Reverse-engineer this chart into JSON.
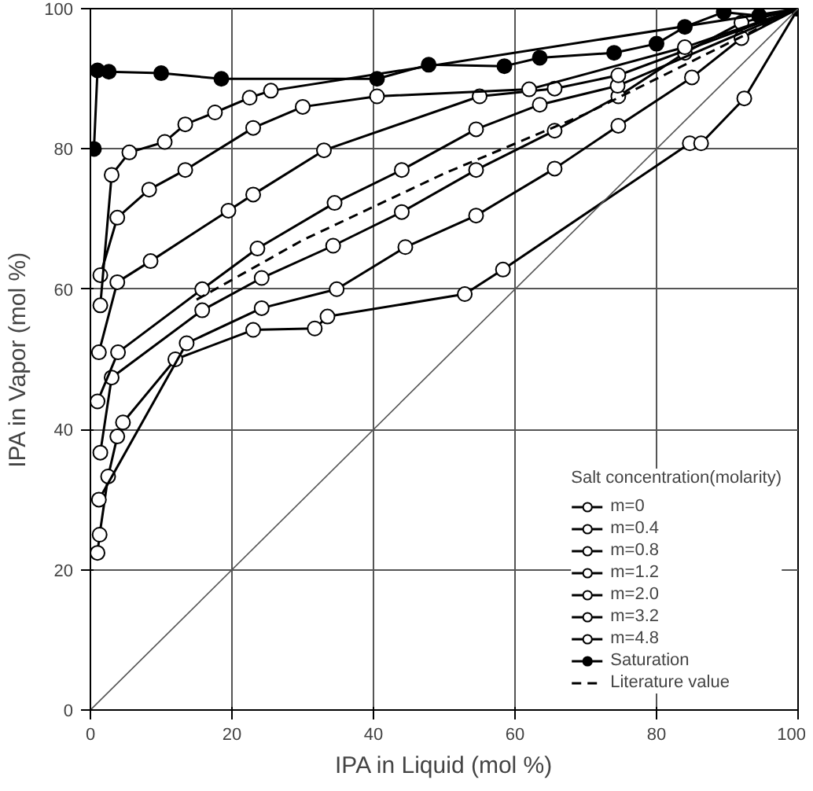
{
  "chart_data": {
    "type": "line",
    "xlabel": "IPA in Liquid (mol %)",
    "ylabel": "IPA in Vapor (mol %)",
    "legend_title": "Salt concentration(molarity)",
    "xlim": [
      0,
      100
    ],
    "ylim": [
      0,
      100
    ],
    "xticks": [
      0,
      20,
      40,
      60,
      80,
      100
    ],
    "yticks": [
      0,
      20,
      40,
      60,
      80,
      100
    ],
    "grid": true,
    "legend": "bottom right",
    "line_style": "solid",
    "series": [
      {
        "name": "m=0",
        "color": "#000000",
        "marker": "circle",
        "x": [
          1,
          1.3,
          2.5,
          3.8,
          4.6,
          12,
          23,
          31.7,
          33.5,
          52.9,
          58.3,
          84.7,
          86.3,
          92.4,
          100
        ],
        "values": [
          22.4,
          25,
          33.3,
          39,
          41,
          50,
          54.2,
          54.4,
          56.1,
          59.3,
          62.8,
          80.8,
          80.8,
          87.2,
          100
        ]
      },
      {
        "name": "m=0.4",
        "color": "#000000",
        "marker": "circle",
        "x": [
          1.2,
          13.6,
          24.2,
          34.8,
          44.5,
          54.5,
          65.6,
          74.6,
          85,
          92,
          100
        ],
        "values": [
          30,
          52.3,
          57.3,
          60,
          66,
          70.5,
          77.2,
          83.3,
          90.2,
          95.8,
          100
        ]
      },
      {
        "name": "m=0.8",
        "color": "#000000",
        "marker": "circle",
        "x": [
          1.4,
          3,
          15.8,
          24.2,
          34.3,
          44,
          54.5,
          65.6,
          74.6,
          84,
          92,
          100
        ],
        "values": [
          36.7,
          47.4,
          57,
          61.6,
          66.2,
          71,
          77,
          82.6,
          87.5,
          93.7,
          98,
          100
        ]
      },
      {
        "name": "m=1.2",
        "color": "#000000",
        "marker": "circle",
        "x": [
          1,
          3.9,
          15.8,
          23.6,
          34.5,
          44,
          54.5,
          63.5,
          74.5,
          100
        ],
        "values": [
          44,
          51,
          60,
          65.8,
          72.3,
          77,
          82.8,
          86.3,
          89,
          100
        ]
      },
      {
        "name": "m=2.0",
        "color": "#000000",
        "marker": "circle",
        "x": [
          1.2,
          3.8,
          8.5,
          19.5,
          23,
          33,
          55,
          65.6,
          74.6,
          100
        ],
        "values": [
          51,
          61,
          64,
          71.2,
          73.5,
          79.8,
          87.5,
          88.6,
          90.5,
          100
        ]
      },
      {
        "name": "m=3.2",
        "color": "#000000",
        "marker": "circle",
        "x": [
          1.4,
          3.8,
          8.3,
          13.4,
          23,
          30,
          40.5,
          62,
          84,
          100
        ],
        "values": [
          62,
          70.2,
          74.2,
          77,
          83,
          86,
          87.5,
          88.5,
          94.5,
          100
        ]
      },
      {
        "name": "m=4.8",
        "color": "#000000",
        "marker": "circle",
        "x": [
          1.4,
          3,
          5.5,
          10.5,
          13.4,
          17.6,
          22.5,
          25.5,
          100
        ],
        "values": [
          57.7,
          76.3,
          79.5,
          81,
          83.5,
          85.2,
          87.3,
          88.3,
          100
        ]
      },
      {
        "name": "Saturation",
        "color": "#000000",
        "marker": "circle",
        "x": [
          0.5,
          1,
          2.6,
          10,
          18.5,
          40.5,
          47.8,
          58.5,
          63.5,
          74,
          80,
          84,
          89.5,
          94.5,
          100
        ],
        "values": [
          80,
          91.2,
          91,
          90.8,
          90,
          90,
          92,
          91.8,
          93,
          93.7,
          95,
          97.4,
          99.5,
          99,
          100
        ]
      },
      {
        "name": "Literature value",
        "color": "#000000",
        "marker": "none",
        "line_style": "dashed",
        "x": [
          15,
          30,
          50,
          70,
          100
        ],
        "values": [
          58.5,
          67,
          76.5,
          85,
          100
        ]
      },
      {
        "color": "#555555",
        "marker": "none",
        "x": [
          0,
          100
        ],
        "values": [
          0,
          100
        ]
      }
    ]
  }
}
